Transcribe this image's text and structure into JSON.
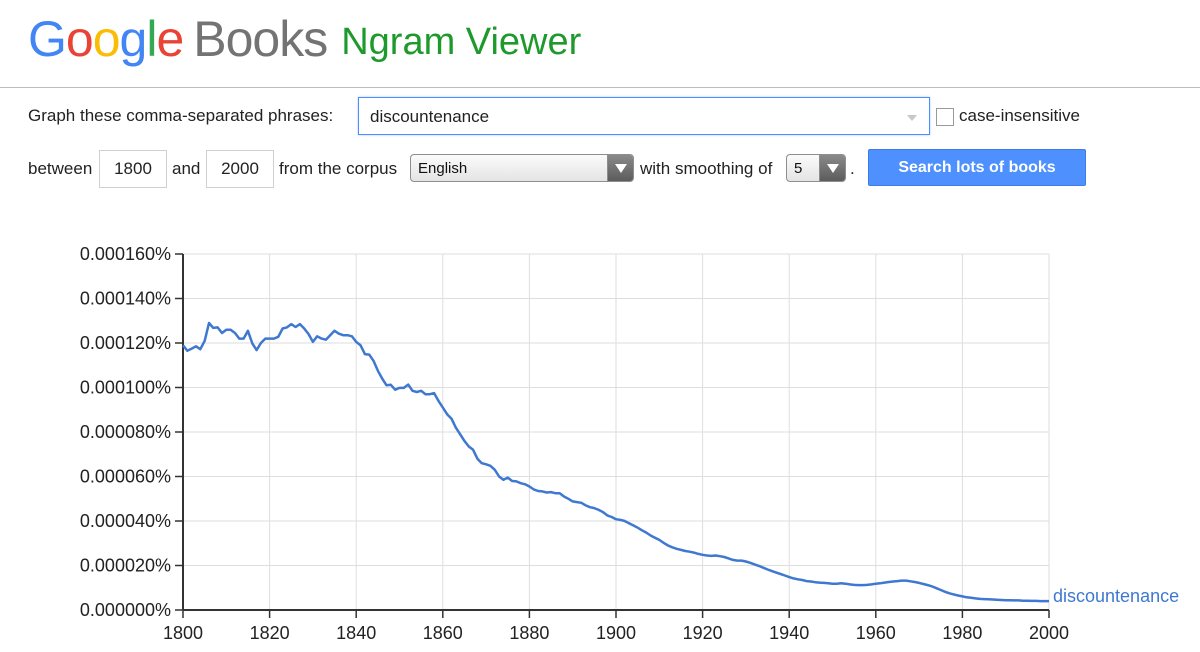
{
  "header": {
    "logo_google": "Google",
    "logo_books": "Books",
    "app_title": "Ngram Viewer"
  },
  "query": {
    "phrases_label": "Graph these comma-separated phrases:",
    "phrases_value": "discountenance",
    "case_insensitive_label": "case-insensitive",
    "case_insensitive_checked": false,
    "between_label": "between",
    "start_year": "1800",
    "and_label": "and",
    "end_year": "2000",
    "corpus_label": "from the corpus",
    "corpus_value": "English",
    "smoothing_label": "with smoothing of",
    "smoothing_value": "5",
    "period": ".",
    "search_button": "Search lots of books",
    "search_button_color": "#4d90fe"
  },
  "chart_data": {
    "type": "line",
    "xlim": [
      1800,
      2000
    ],
    "ylim": [
      0,
      0.00016
    ],
    "x_ticks": [
      "1800",
      "1820",
      "1840",
      "1860",
      "1880",
      "1900",
      "1920",
      "1940",
      "1960",
      "1980",
      "2000"
    ],
    "y_ticks": [
      "0.000000%",
      "0.000020%",
      "0.000040%",
      "0.000060%",
      "0.000080%",
      "0.000100%",
      "0.000120%",
      "0.000140%",
      "0.000160%"
    ],
    "grid": true,
    "series": [
      {
        "name": "discountenance",
        "color": "#3f78d0",
        "points": [
          [
            1800,
            0.000119
          ],
          [
            1801,
            0.0001165
          ],
          [
            1802,
            0.0001175
          ],
          [
            1803,
            0.0001185
          ],
          [
            1804,
            0.0001172
          ],
          [
            1805,
            0.000121
          ],
          [
            1806,
            0.000129
          ],
          [
            1807,
            0.0001268
          ],
          [
            1808,
            0.000127
          ],
          [
            1809,
            0.0001245
          ],
          [
            1810,
            0.000126
          ],
          [
            1811,
            0.000126
          ],
          [
            1812,
            0.0001245
          ],
          [
            1813,
            0.000122
          ],
          [
            1814,
            0.000122
          ],
          [
            1815,
            0.0001255
          ],
          [
            1816,
            0.0001198
          ],
          [
            1817,
            0.0001168
          ],
          [
            1818,
            0.00012
          ],
          [
            1819,
            0.000122
          ],
          [
            1820,
            0.000122
          ],
          [
            1821,
            0.000122
          ],
          [
            1822,
            0.0001228
          ],
          [
            1823,
            0.0001265
          ],
          [
            1824,
            0.000127
          ],
          [
            1825,
            0.0001285
          ],
          [
            1826,
            0.0001272
          ],
          [
            1827,
            0.0001285
          ],
          [
            1828,
            0.0001265
          ],
          [
            1829,
            0.000124
          ],
          [
            1830,
            0.0001205
          ],
          [
            1831,
            0.000123
          ],
          [
            1832,
            0.000122
          ],
          [
            1833,
            0.0001215
          ],
          [
            1834,
            0.0001235
          ],
          [
            1835,
            0.0001255
          ],
          [
            1836,
            0.0001242
          ],
          [
            1837,
            0.0001235
          ],
          [
            1838,
            0.0001235
          ],
          [
            1839,
            0.000123
          ],
          [
            1840,
            0.0001205
          ],
          [
            1841,
            0.000119
          ],
          [
            1842,
            0.000115
          ],
          [
            1843,
            0.0001148
          ],
          [
            1844,
            0.000112
          ],
          [
            1845,
            0.0001075
          ],
          [
            1846,
            0.000104
          ],
          [
            1847,
            0.000101
          ],
          [
            1848,
            0.0001012
          ],
          [
            1849,
            9.9e-05
          ],
          [
            1850,
            9.98e-05
          ],
          [
            1851,
            9.98e-05
          ],
          [
            1852,
            0.0001013
          ],
          [
            1853,
            9.85e-05
          ],
          [
            1854,
            9.8e-05
          ],
          [
            1855,
            9.85e-05
          ],
          [
            1856,
            9.7e-05
          ],
          [
            1857,
            9.7e-05
          ],
          [
            1858,
            9.75e-05
          ],
          [
            1859,
            9.4e-05
          ],
          [
            1860,
            9.1e-05
          ],
          [
            1861,
            8.8e-05
          ],
          [
            1862,
            8.6e-05
          ],
          [
            1863,
            8.2e-05
          ],
          [
            1864,
            7.9e-05
          ],
          [
            1865,
            7.6e-05
          ],
          [
            1866,
            7.35e-05
          ],
          [
            1867,
            7.2e-05
          ],
          [
            1868,
            6.8e-05
          ],
          [
            1869,
            6.6e-05
          ],
          [
            1870,
            6.55e-05
          ],
          [
            1871,
            6.48e-05
          ],
          [
            1872,
            6.3e-05
          ],
          [
            1873,
            6e-05
          ],
          [
            1874,
            5.85e-05
          ],
          [
            1875,
            5.95e-05
          ],
          [
            1876,
            5.8e-05
          ],
          [
            1877,
            5.78e-05
          ],
          [
            1878,
            5.7e-05
          ],
          [
            1879,
            5.65e-05
          ],
          [
            1880,
            5.55e-05
          ],
          [
            1881,
            5.42e-05
          ],
          [
            1882,
            5.35e-05
          ],
          [
            1883,
            5.33e-05
          ],
          [
            1884,
            5.28e-05
          ],
          [
            1885,
            5.3e-05
          ],
          [
            1886,
            5.25e-05
          ],
          [
            1887,
            5.25e-05
          ],
          [
            1888,
            5.1e-05
          ],
          [
            1889,
            5e-05
          ],
          [
            1890,
            4.88e-05
          ],
          [
            1891,
            4.85e-05
          ],
          [
            1892,
            4.82e-05
          ],
          [
            1893,
            4.7e-05
          ],
          [
            1894,
            4.62e-05
          ],
          [
            1895,
            4.58e-05
          ],
          [
            1896,
            4.5e-05
          ],
          [
            1897,
            4.4e-05
          ],
          [
            1898,
            4.25e-05
          ],
          [
            1899,
            4.18e-05
          ],
          [
            1900,
            4.08e-05
          ],
          [
            1901,
            4.05e-05
          ],
          [
            1902,
            4e-05
          ],
          [
            1903,
            3.9e-05
          ],
          [
            1904,
            3.8e-05
          ],
          [
            1905,
            3.7e-05
          ],
          [
            1906,
            3.58e-05
          ],
          [
            1907,
            3.48e-05
          ],
          [
            1908,
            3.35e-05
          ],
          [
            1909,
            3.25e-05
          ],
          [
            1910,
            3.15e-05
          ],
          [
            1911,
            3.02e-05
          ],
          [
            1912,
            2.9e-05
          ],
          [
            1913,
            2.82e-05
          ],
          [
            1914,
            2.75e-05
          ],
          [
            1915,
            2.7e-05
          ],
          [
            1916,
            2.65e-05
          ],
          [
            1917,
            2.62e-05
          ],
          [
            1918,
            2.58e-05
          ],
          [
            1919,
            2.52e-05
          ],
          [
            1920,
            2.48e-05
          ],
          [
            1921,
            2.45e-05
          ],
          [
            1922,
            2.43e-05
          ],
          [
            1923,
            2.45e-05
          ],
          [
            1924,
            2.42e-05
          ],
          [
            1925,
            2.38e-05
          ],
          [
            1926,
            2.32e-05
          ],
          [
            1927,
            2.25e-05
          ],
          [
            1928,
            2.22e-05
          ],
          [
            1929,
            2.22e-05
          ],
          [
            1930,
            2.18e-05
          ],
          [
            1931,
            2.12e-05
          ],
          [
            1932,
            2.05e-05
          ],
          [
            1933,
            1.98e-05
          ],
          [
            1934,
            1.9e-05
          ],
          [
            1935,
            1.82e-05
          ],
          [
            1936,
            1.75e-05
          ],
          [
            1937,
            1.68e-05
          ],
          [
            1938,
            1.62e-05
          ],
          [
            1939,
            1.55e-05
          ],
          [
            1940,
            1.48e-05
          ],
          [
            1941,
            1.42e-05
          ],
          [
            1942,
            1.38e-05
          ],
          [
            1943,
            1.35e-05
          ],
          [
            1944,
            1.3e-05
          ],
          [
            1945,
            1.28e-05
          ],
          [
            1946,
            1.25e-05
          ],
          [
            1947,
            1.23e-05
          ],
          [
            1948,
            1.22e-05
          ],
          [
            1949,
            1.2e-05
          ],
          [
            1950,
            1.18e-05
          ],
          [
            1951,
            1.18e-05
          ],
          [
            1952,
            1.2e-05
          ],
          [
            1953,
            1.18e-05
          ],
          [
            1954,
            1.15e-05
          ],
          [
            1955,
            1.13e-05
          ],
          [
            1956,
            1.12e-05
          ],
          [
            1957,
            1.12e-05
          ],
          [
            1958,
            1.13e-05
          ],
          [
            1959,
            1.15e-05
          ],
          [
            1960,
            1.18e-05
          ],
          [
            1961,
            1.2e-05
          ],
          [
            1962,
            1.23e-05
          ],
          [
            1963,
            1.26e-05
          ],
          [
            1964,
            1.28e-05
          ],
          [
            1965,
            1.3e-05
          ],
          [
            1966,
            1.32e-05
          ],
          [
            1967,
            1.32e-05
          ],
          [
            1968,
            1.29e-05
          ],
          [
            1969,
            1.26e-05
          ],
          [
            1970,
            1.22e-05
          ],
          [
            1971,
            1.17e-05
          ],
          [
            1972,
            1.12e-05
          ],
          [
            1973,
            1.06e-05
          ],
          [
            1974,
            9.8e-06
          ],
          [
            1975,
            9e-06
          ],
          [
            1976,
            8.2e-06
          ],
          [
            1977,
            7.5e-06
          ],
          [
            1978,
            7e-06
          ],
          [
            1979,
            6.5e-06
          ],
          [
            1980,
            6.1e-06
          ],
          [
            1981,
            5.7e-06
          ],
          [
            1982,
            5.5e-06
          ],
          [
            1983,
            5.2e-06
          ],
          [
            1984,
            5e-06
          ],
          [
            1985,
            4.9e-06
          ],
          [
            1986,
            4.8e-06
          ],
          [
            1987,
            4.7e-06
          ],
          [
            1988,
            4.6e-06
          ],
          [
            1989,
            4.5e-06
          ],
          [
            1990,
            4.4e-06
          ],
          [
            1991,
            4.4e-06
          ],
          [
            1992,
            4.3e-06
          ],
          [
            1993,
            4.3e-06
          ],
          [
            1994,
            4.2e-06
          ],
          [
            1995,
            4.2e-06
          ],
          [
            1996,
            4.1e-06
          ],
          [
            1997,
            4.1e-06
          ],
          [
            1998,
            4e-06
          ],
          [
            1999,
            4e-06
          ],
          [
            2000,
            4e-06
          ]
        ]
      }
    ]
  }
}
